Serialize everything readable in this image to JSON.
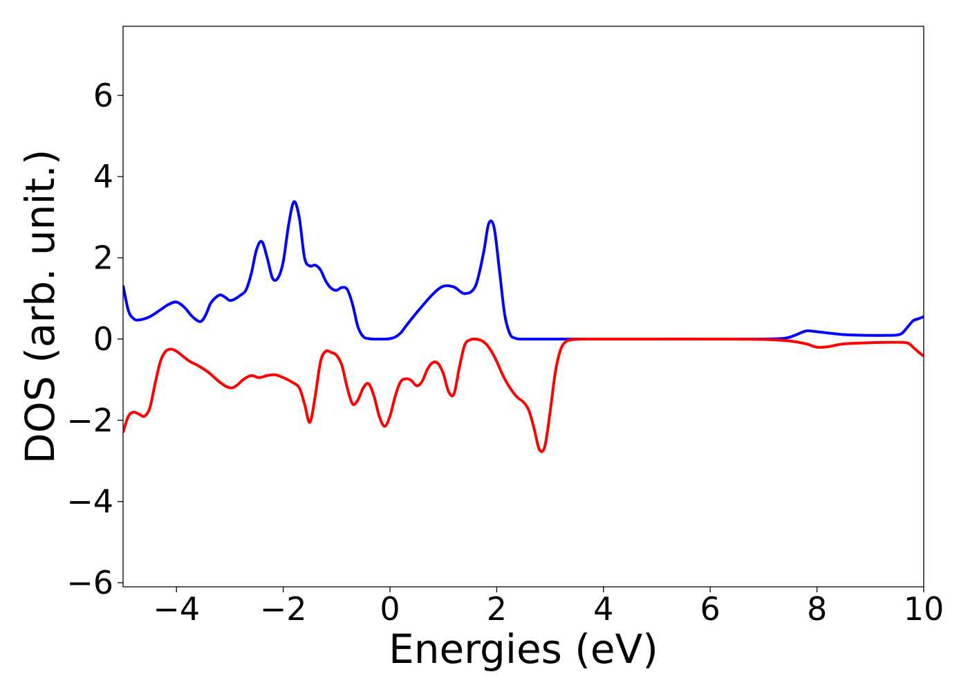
{
  "chart_data": {
    "type": "line",
    "title": "",
    "xlabel": "Energies (eV)",
    "ylabel": "DOS (arb. unit.)",
    "xlim": [
      -5,
      10
    ],
    "ylim": [
      -6.1,
      7.7
    ],
    "xticks": [
      -4,
      -2,
      0,
      2,
      4,
      6,
      8,
      10
    ],
    "xtick_labels": [
      "−4",
      "−2",
      "0",
      "2",
      "4",
      "6",
      "8",
      "10"
    ],
    "yticks": [
      -6,
      -4,
      -2,
      0,
      2,
      4,
      6
    ],
    "ytick_labels": [
      "−6",
      "−4",
      "−2",
      "0",
      "2",
      "4",
      "6"
    ],
    "grid": false,
    "legend": "none",
    "series": [
      {
        "color": "#0000ff",
        "x": [
          -5.0,
          -4.9,
          -4.8,
          -4.7,
          -4.5,
          -4.3,
          -4.15,
          -4.0,
          -3.85,
          -3.7,
          -3.55,
          -3.45,
          -3.35,
          -3.2,
          -3.1,
          -3.0,
          -2.9,
          -2.8,
          -2.7,
          -2.6,
          -2.5,
          -2.4,
          -2.3,
          -2.2,
          -2.1,
          -2.0,
          -1.9,
          -1.8,
          -1.7,
          -1.6,
          -1.5,
          -1.4,
          -1.3,
          -1.2,
          -1.1,
          -1.0,
          -0.9,
          -0.8,
          -0.7,
          -0.6,
          -0.5,
          -0.4,
          -0.3,
          -0.2,
          -0.1,
          0.0,
          0.1,
          0.2,
          0.3,
          0.5,
          0.8,
          1.0,
          1.2,
          1.4,
          1.6,
          1.75,
          1.85,
          1.95,
          2.05,
          2.15,
          2.25,
          2.35,
          2.45,
          2.55,
          2.65,
          2.75,
          2.85,
          3.0,
          3.5,
          4.0,
          5.0,
          6.0,
          7.0,
          7.4,
          7.6,
          7.8,
          8.0,
          8.5,
          9.0,
          9.3,
          9.5,
          9.6,
          9.7,
          9.8,
          9.9,
          10.0
        ],
        "y": [
          1.32,
          0.7,
          0.5,
          0.47,
          0.55,
          0.72,
          0.85,
          0.91,
          0.78,
          0.55,
          0.43,
          0.6,
          0.9,
          1.08,
          1.04,
          0.95,
          0.99,
          1.08,
          1.2,
          1.6,
          2.2,
          2.4,
          2.0,
          1.5,
          1.5,
          1.9,
          2.8,
          3.38,
          3.0,
          2.0,
          1.8,
          1.82,
          1.7,
          1.42,
          1.25,
          1.2,
          1.27,
          1.22,
          0.85,
          0.3,
          0.06,
          0.01,
          0.0,
          0.0,
          0.0,
          0.01,
          0.05,
          0.15,
          0.32,
          0.65,
          1.1,
          1.3,
          1.28,
          1.12,
          1.3,
          2.1,
          2.84,
          2.75,
          1.7,
          0.6,
          0.12,
          0.02,
          0.0,
          0.0,
          0.0,
          0.0,
          0.0,
          0.0,
          0.0,
          0.0,
          0.0,
          0.0,
          0.0,
          0.02,
          0.1,
          0.2,
          0.18,
          0.11,
          0.09,
          0.09,
          0.1,
          0.15,
          0.3,
          0.45,
          0.5,
          0.55
        ]
      },
      {
        "color": "#ff0000",
        "x": [
          -5.0,
          -4.9,
          -4.8,
          -4.7,
          -4.6,
          -4.5,
          -4.4,
          -4.3,
          -4.2,
          -4.1,
          -4.0,
          -3.9,
          -3.75,
          -3.6,
          -3.4,
          -3.2,
          -3.05,
          -2.95,
          -2.85,
          -2.75,
          -2.6,
          -2.45,
          -2.3,
          -2.15,
          -2.0,
          -1.85,
          -1.7,
          -1.6,
          -1.5,
          -1.4,
          -1.3,
          -1.2,
          -1.1,
          -1.0,
          -0.9,
          -0.8,
          -0.7,
          -0.6,
          -0.5,
          -0.4,
          -0.3,
          -0.2,
          -0.1,
          0.0,
          0.1,
          0.2,
          0.3,
          0.4,
          0.5,
          0.6,
          0.7,
          0.8,
          0.9,
          1.0,
          1.1,
          1.2,
          1.3,
          1.4,
          1.5,
          1.6,
          1.7,
          1.8,
          1.9,
          2.0,
          2.1,
          2.2,
          2.3,
          2.4,
          2.5,
          2.6,
          2.7,
          2.8,
          2.9,
          3.0,
          3.1,
          3.2,
          3.3,
          3.4,
          3.5,
          3.6,
          3.7,
          3.8,
          4.0,
          5.0,
          6.0,
          7.0,
          7.5,
          7.8,
          8.0,
          8.2,
          8.5,
          9.0,
          9.5,
          9.7,
          9.8,
          9.9,
          10.0
        ],
        "y": [
          -2.3,
          -1.9,
          -1.8,
          -1.85,
          -1.9,
          -1.7,
          -1.1,
          -0.55,
          -0.3,
          -0.25,
          -0.3,
          -0.4,
          -0.55,
          -0.65,
          -0.82,
          -1.05,
          -1.18,
          -1.2,
          -1.12,
          -1.0,
          -0.9,
          -0.95,
          -0.9,
          -0.88,
          -0.95,
          -1.05,
          -1.2,
          -1.6,
          -2.05,
          -1.4,
          -0.55,
          -0.3,
          -0.33,
          -0.4,
          -0.65,
          -1.2,
          -1.6,
          -1.5,
          -1.2,
          -1.1,
          -1.4,
          -1.9,
          -2.15,
          -1.9,
          -1.4,
          -1.05,
          -0.98,
          -1.02,
          -1.15,
          -1.05,
          -0.75,
          -0.58,
          -0.6,
          -0.85,
          -1.3,
          -1.35,
          -0.7,
          -0.15,
          -0.02,
          0.0,
          -0.03,
          -0.12,
          -0.3,
          -0.55,
          -0.85,
          -1.1,
          -1.3,
          -1.45,
          -1.55,
          -1.75,
          -2.2,
          -2.72,
          -2.65,
          -1.8,
          -0.8,
          -0.25,
          -0.06,
          -0.02,
          -0.01,
          0.0,
          0.0,
          0.0,
          0.0,
          0.0,
          0.0,
          -0.01,
          -0.05,
          -0.12,
          -0.2,
          -0.19,
          -0.12,
          -0.09,
          -0.08,
          -0.1,
          -0.2,
          -0.32,
          -0.42
        ]
      }
    ]
  }
}
